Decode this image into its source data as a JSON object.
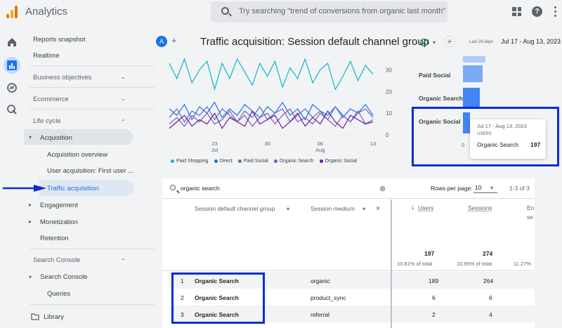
{
  "topbar": {
    "app_title": "Analytics",
    "search_placeholder": "Try searching \"trend of conversions from organic last month\"",
    "icons": [
      "analytics-logo-icon",
      "search-icon",
      "apps-grid-icon",
      "help-icon",
      "more-vert-icon"
    ]
  },
  "sidebar": {
    "items": {
      "reports_snapshot": "Reports snapshot",
      "realtime": "Realtime",
      "business_objectives": "Business objectives",
      "ecommerce": "Ecommerce",
      "life_cycle": "Life cycle",
      "acquisition": "Acquisition",
      "acquisition_overview": "Acquisition overview",
      "user_acquisition": "User acquisition: First user ...",
      "traffic_acquisition": "Traffic acquisition",
      "engagement": "Engagement",
      "monetization": "Monetization",
      "retention": "Retention",
      "search_console_section": "Search Console",
      "search_console": "Search Console",
      "queries": "Queries",
      "library": "Library"
    }
  },
  "header": {
    "avatar": "A",
    "plus": "+",
    "title": "Traffic acquisition: Session default channel group",
    "date_small": "Last 28 days",
    "date_range": "Jul 17 - Aug 13, 2023"
  },
  "chart_data": {
    "type": "line",
    "x": [
      "Jul 17",
      "18",
      "19",
      "20",
      "21",
      "22",
      "23",
      "24",
      "25",
      "26",
      "27",
      "28",
      "29",
      "30",
      "31",
      "Aug 1",
      "2",
      "3",
      "4",
      "5",
      "6",
      "7",
      "8",
      "9",
      "10",
      "11",
      "12",
      "13"
    ],
    "x_tick_labels": [
      "23",
      "Jul",
      "30",
      "06",
      "Aug",
      "13"
    ],
    "y_tick_labels": [
      "30",
      "20",
      "10",
      "0"
    ],
    "ylim": [
      0,
      35
    ],
    "legend": [
      "Paid Shopping",
      "Direct",
      "Paid Social",
      "Organic Search",
      "Organic Social"
    ],
    "legend_colors": [
      "#12b5cb",
      "#1a73e8",
      "#5c6bc0",
      "#7e57c2",
      "#6a1b9a"
    ],
    "series": [
      {
        "name": "Paid Shopping",
        "values": [
          33,
          26,
          35,
          24,
          30,
          34,
          21,
          33,
          26,
          35,
          29,
          23,
          33,
          27,
          34,
          22,
          31,
          26,
          35,
          24,
          30,
          33,
          21,
          27,
          34,
          25,
          32,
          28
        ]
      },
      {
        "name": "Direct",
        "values": [
          12,
          9,
          14,
          7,
          13,
          10,
          15,
          8,
          12,
          9,
          14,
          11,
          8,
          13,
          10,
          15,
          9,
          12,
          7,
          14,
          11,
          9,
          13,
          8,
          12,
          10,
          14,
          9
        ]
      },
      {
        "name": "Paid Social",
        "values": [
          8,
          12,
          6,
          11,
          9,
          13,
          7,
          12,
          9,
          6,
          11,
          8,
          13,
          7,
          10,
          12,
          6,
          9,
          12,
          8,
          11,
          7,
          13,
          9,
          6,
          10,
          12,
          8
        ]
      },
      {
        "name": "Organic Search",
        "values": [
          5,
          8,
          4,
          9,
          6,
          10,
          5,
          7,
          11,
          6,
          9,
          4,
          8,
          10,
          5,
          9,
          12,
          6,
          8,
          5,
          10,
          7,
          4,
          9,
          6,
          11,
          5,
          7
        ]
      },
      {
        "name": "Organic Social",
        "values": [
          3,
          6,
          9,
          4,
          7,
          5,
          10,
          3,
          8,
          6,
          4,
          11,
          5,
          7,
          9,
          3,
          6,
          10,
          4,
          8,
          5,
          11,
          6,
          3,
          9,
          7,
          5,
          6
        ]
      }
    ]
  },
  "bars": {
    "labels": [
      "Paid Social",
      "Organic Search",
      "Organic Social"
    ],
    "values": [
      0.35,
      0.3,
      0.12
    ],
    "axis_zero": "0"
  },
  "tooltip": {
    "date": "Jul 17 - Aug 13, 2023",
    "metric": "USERS",
    "channel": "Organic Search",
    "value": "197"
  },
  "table": {
    "search_value": "organic search",
    "rows_per_page_label": "Rows per page:",
    "rows_per_page": "10",
    "range": "1-3 of 3",
    "col_dim1": "Session default channel group",
    "col_dim2": "Session medium",
    "col_users": "Users",
    "col_sessions": "Sessions",
    "col_more_1": "En",
    "col_more_2": "se",
    "totals": {
      "users": "197",
      "users_pct": "10.81% of total",
      "sessions": "274",
      "sessions_pct": "10.95% of total",
      "third_pct": "11.27%"
    },
    "rows": [
      {
        "n": "1",
        "channel": "Organic Search",
        "medium": "organic",
        "users": "189",
        "sessions": "264"
      },
      {
        "n": "2",
        "channel": "Organic Search",
        "medium": "product_sync",
        "users": "6",
        "sessions": "6"
      },
      {
        "n": "3",
        "channel": "Organic Search",
        "medium": "referral",
        "users": "2",
        "sessions": "4"
      }
    ]
  },
  "colors": {
    "accent": "#1a73e8",
    "annotation": "#0b2ed0",
    "bar": "#4285f4",
    "bar_light": "#aecbfa",
    "selected_bg": "#e0e3e7"
  }
}
